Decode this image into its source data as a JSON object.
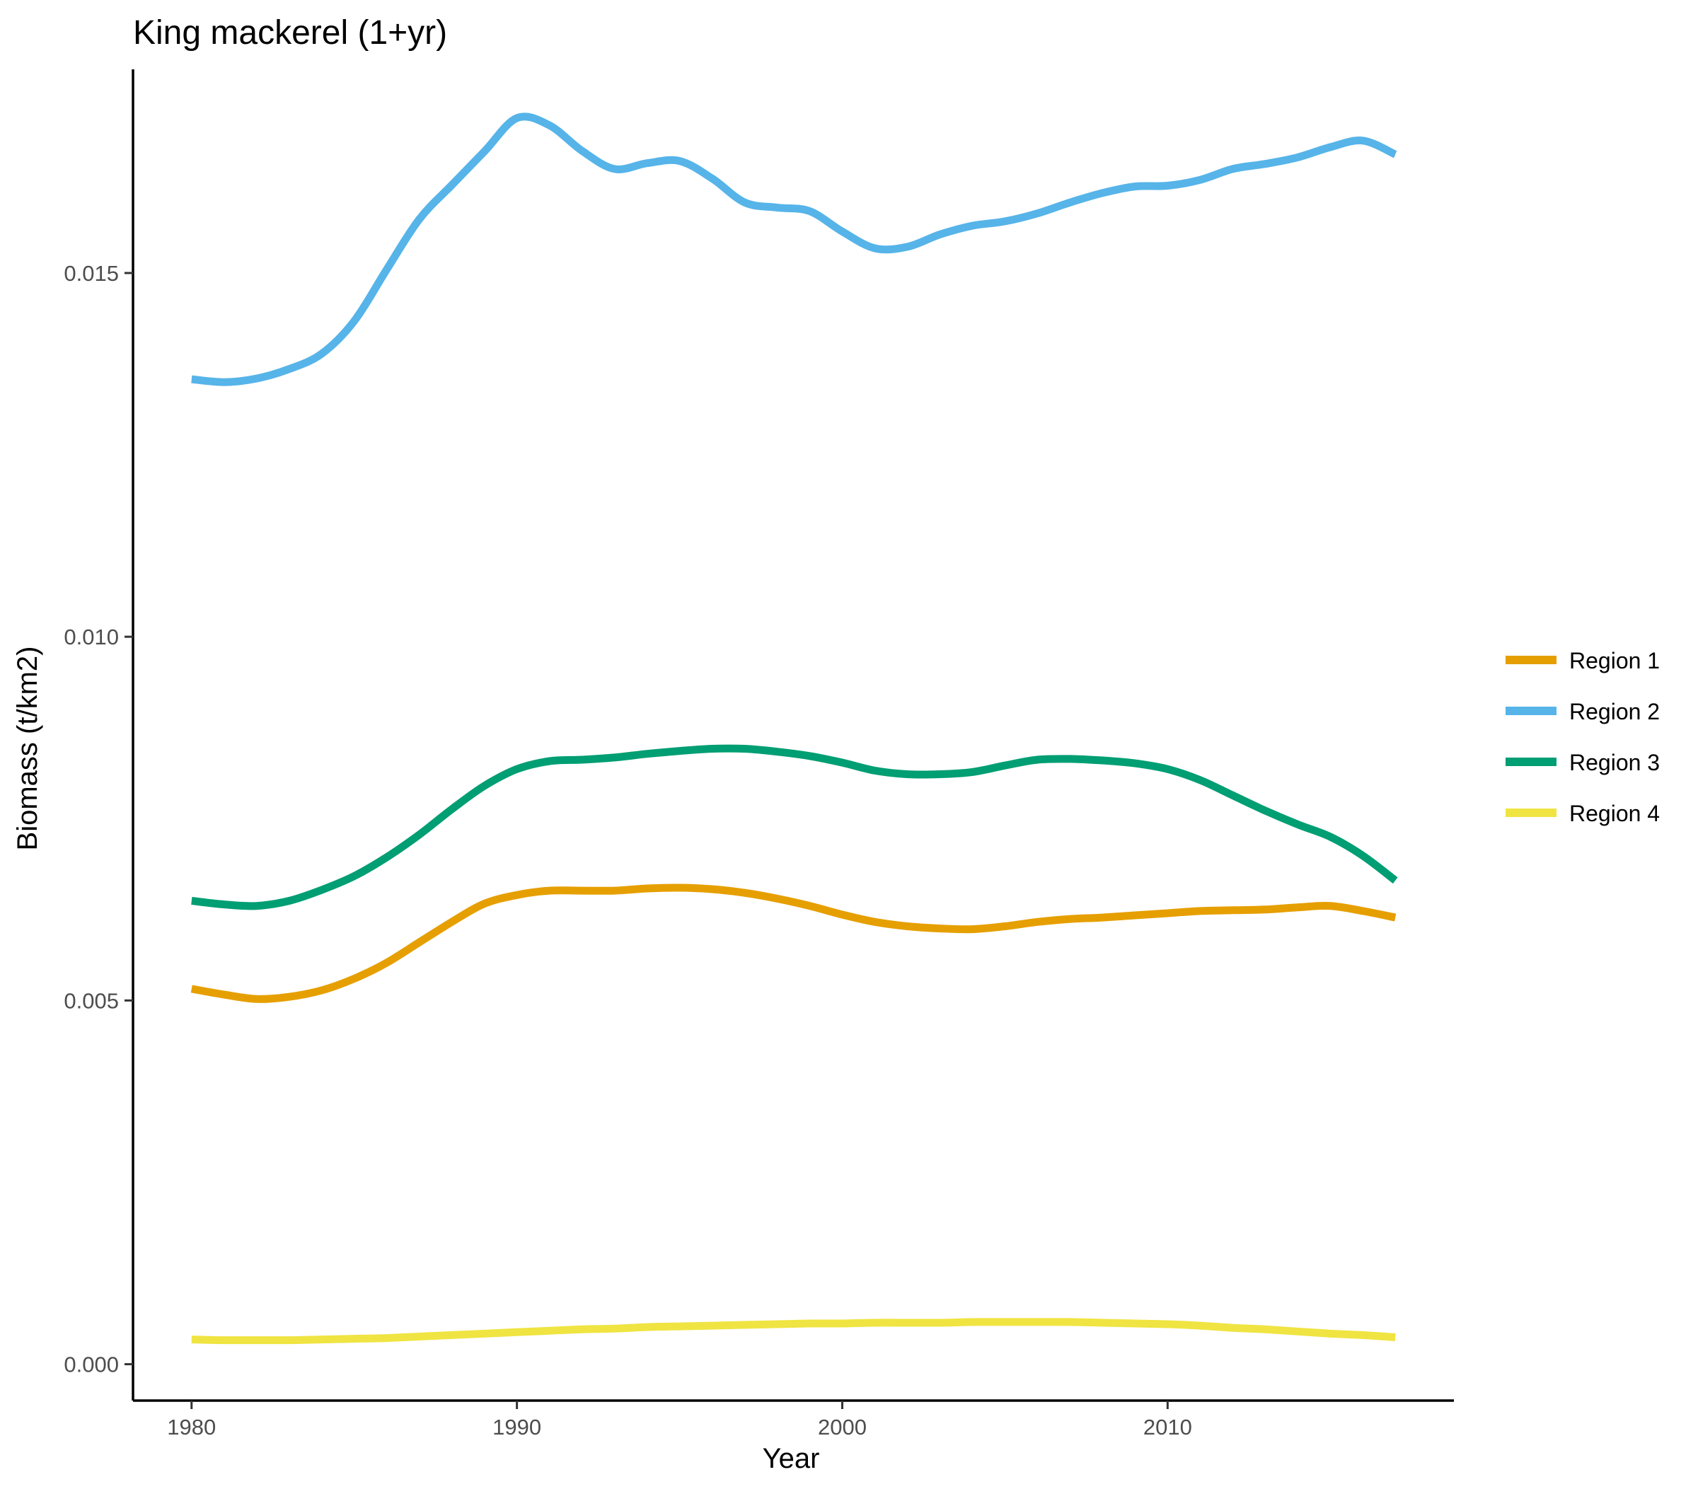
{
  "chart_data": {
    "type": "line",
    "title": "King mackerel (1+yr)",
    "xlabel": "Year",
    "ylabel": "Biomass (t/km2)",
    "xlim": [
      1978.2,
      2018.8
    ],
    "ylim": [
      -0.0005,
      0.0178
    ],
    "x_ticks": [
      1980,
      1990,
      2000,
      2010
    ],
    "x_tick_labels": [
      "1980",
      "1990",
      "2000",
      "2010"
    ],
    "y_ticks": [
      0.0,
      0.005,
      0.01,
      0.015
    ],
    "y_tick_labels": [
      "0.000",
      "0.005",
      "0.010",
      "0.015"
    ],
    "grid": false,
    "legend_position": "right",
    "x": [
      1980,
      1981,
      1982,
      1983,
      1984,
      1985,
      1986,
      1987,
      1988,
      1989,
      1990,
      1991,
      1992,
      1993,
      1994,
      1995,
      1996,
      1997,
      1998,
      1999,
      2000,
      2001,
      2002,
      2003,
      2004,
      2005,
      2006,
      2007,
      2008,
      2009,
      2010,
      2011,
      2012,
      2013,
      2014,
      2015,
      2016,
      2017
    ],
    "series": [
      {
        "name": "Region 1",
        "color": "#E69F00",
        "values": [
          0.00516,
          0.00508,
          0.00502,
          0.00505,
          0.00514,
          0.0053,
          0.00552,
          0.0058,
          0.00608,
          0.00633,
          0.00645,
          0.00651,
          0.00651,
          0.00651,
          0.00654,
          0.00655,
          0.00653,
          0.00648,
          0.0064,
          0.0063,
          0.00618,
          0.00608,
          0.00602,
          0.00599,
          0.00598,
          0.00602,
          0.00608,
          0.00612,
          0.00614,
          0.00617,
          0.0062,
          0.00623,
          0.00624,
          0.00625,
          0.00628,
          0.0063,
          0.00623,
          0.00614
        ]
      },
      {
        "name": "Region 2",
        "color": "#56B4E9",
        "values": [
          0.01354,
          0.0135,
          0.01355,
          0.01368,
          0.01389,
          0.01434,
          0.01505,
          0.01574,
          0.01621,
          0.01667,
          0.01713,
          0.01703,
          0.01668,
          0.01643,
          0.01651,
          0.01654,
          0.0163,
          0.01597,
          0.0159,
          0.01585,
          0.01557,
          0.01534,
          0.01536,
          0.01553,
          0.01565,
          0.01571,
          0.01582,
          0.01597,
          0.0161,
          0.01619,
          0.0162,
          0.01628,
          0.01643,
          0.0165,
          0.01659,
          0.01673,
          0.01682,
          0.01663
        ]
      },
      {
        "name": "Region 3",
        "color": "#009E73",
        "values": [
          0.00637,
          0.00632,
          0.0063,
          0.00637,
          0.00652,
          0.00671,
          0.00697,
          0.00728,
          0.00763,
          0.00795,
          0.00818,
          0.00829,
          0.00831,
          0.00834,
          0.00839,
          0.00843,
          0.00846,
          0.00846,
          0.00842,
          0.00836,
          0.00827,
          0.00816,
          0.00811,
          0.00811,
          0.00814,
          0.00823,
          0.00831,
          0.00832,
          0.0083,
          0.00826,
          0.00818,
          0.00803,
          0.00782,
          0.00761,
          0.00742,
          0.00725,
          0.00699,
          0.00665
        ]
      },
      {
        "name": "Region 4",
        "color": "#F0E442",
        "values": [
          0.00034,
          0.00033,
          0.00033,
          0.00033,
          0.00034,
          0.00035,
          0.00036,
          0.00038,
          0.0004,
          0.00042,
          0.00044,
          0.00046,
          0.00048,
          0.00049,
          0.00051,
          0.00052,
          0.00053,
          0.00054,
          0.00055,
          0.00056,
          0.00056,
          0.00057,
          0.00057,
          0.00057,
          0.00058,
          0.00058,
          0.00058,
          0.00058,
          0.00057,
          0.00056,
          0.00055,
          0.00053,
          0.0005,
          0.00048,
          0.00045,
          0.00042,
          0.0004,
          0.00037
        ]
      }
    ]
  }
}
